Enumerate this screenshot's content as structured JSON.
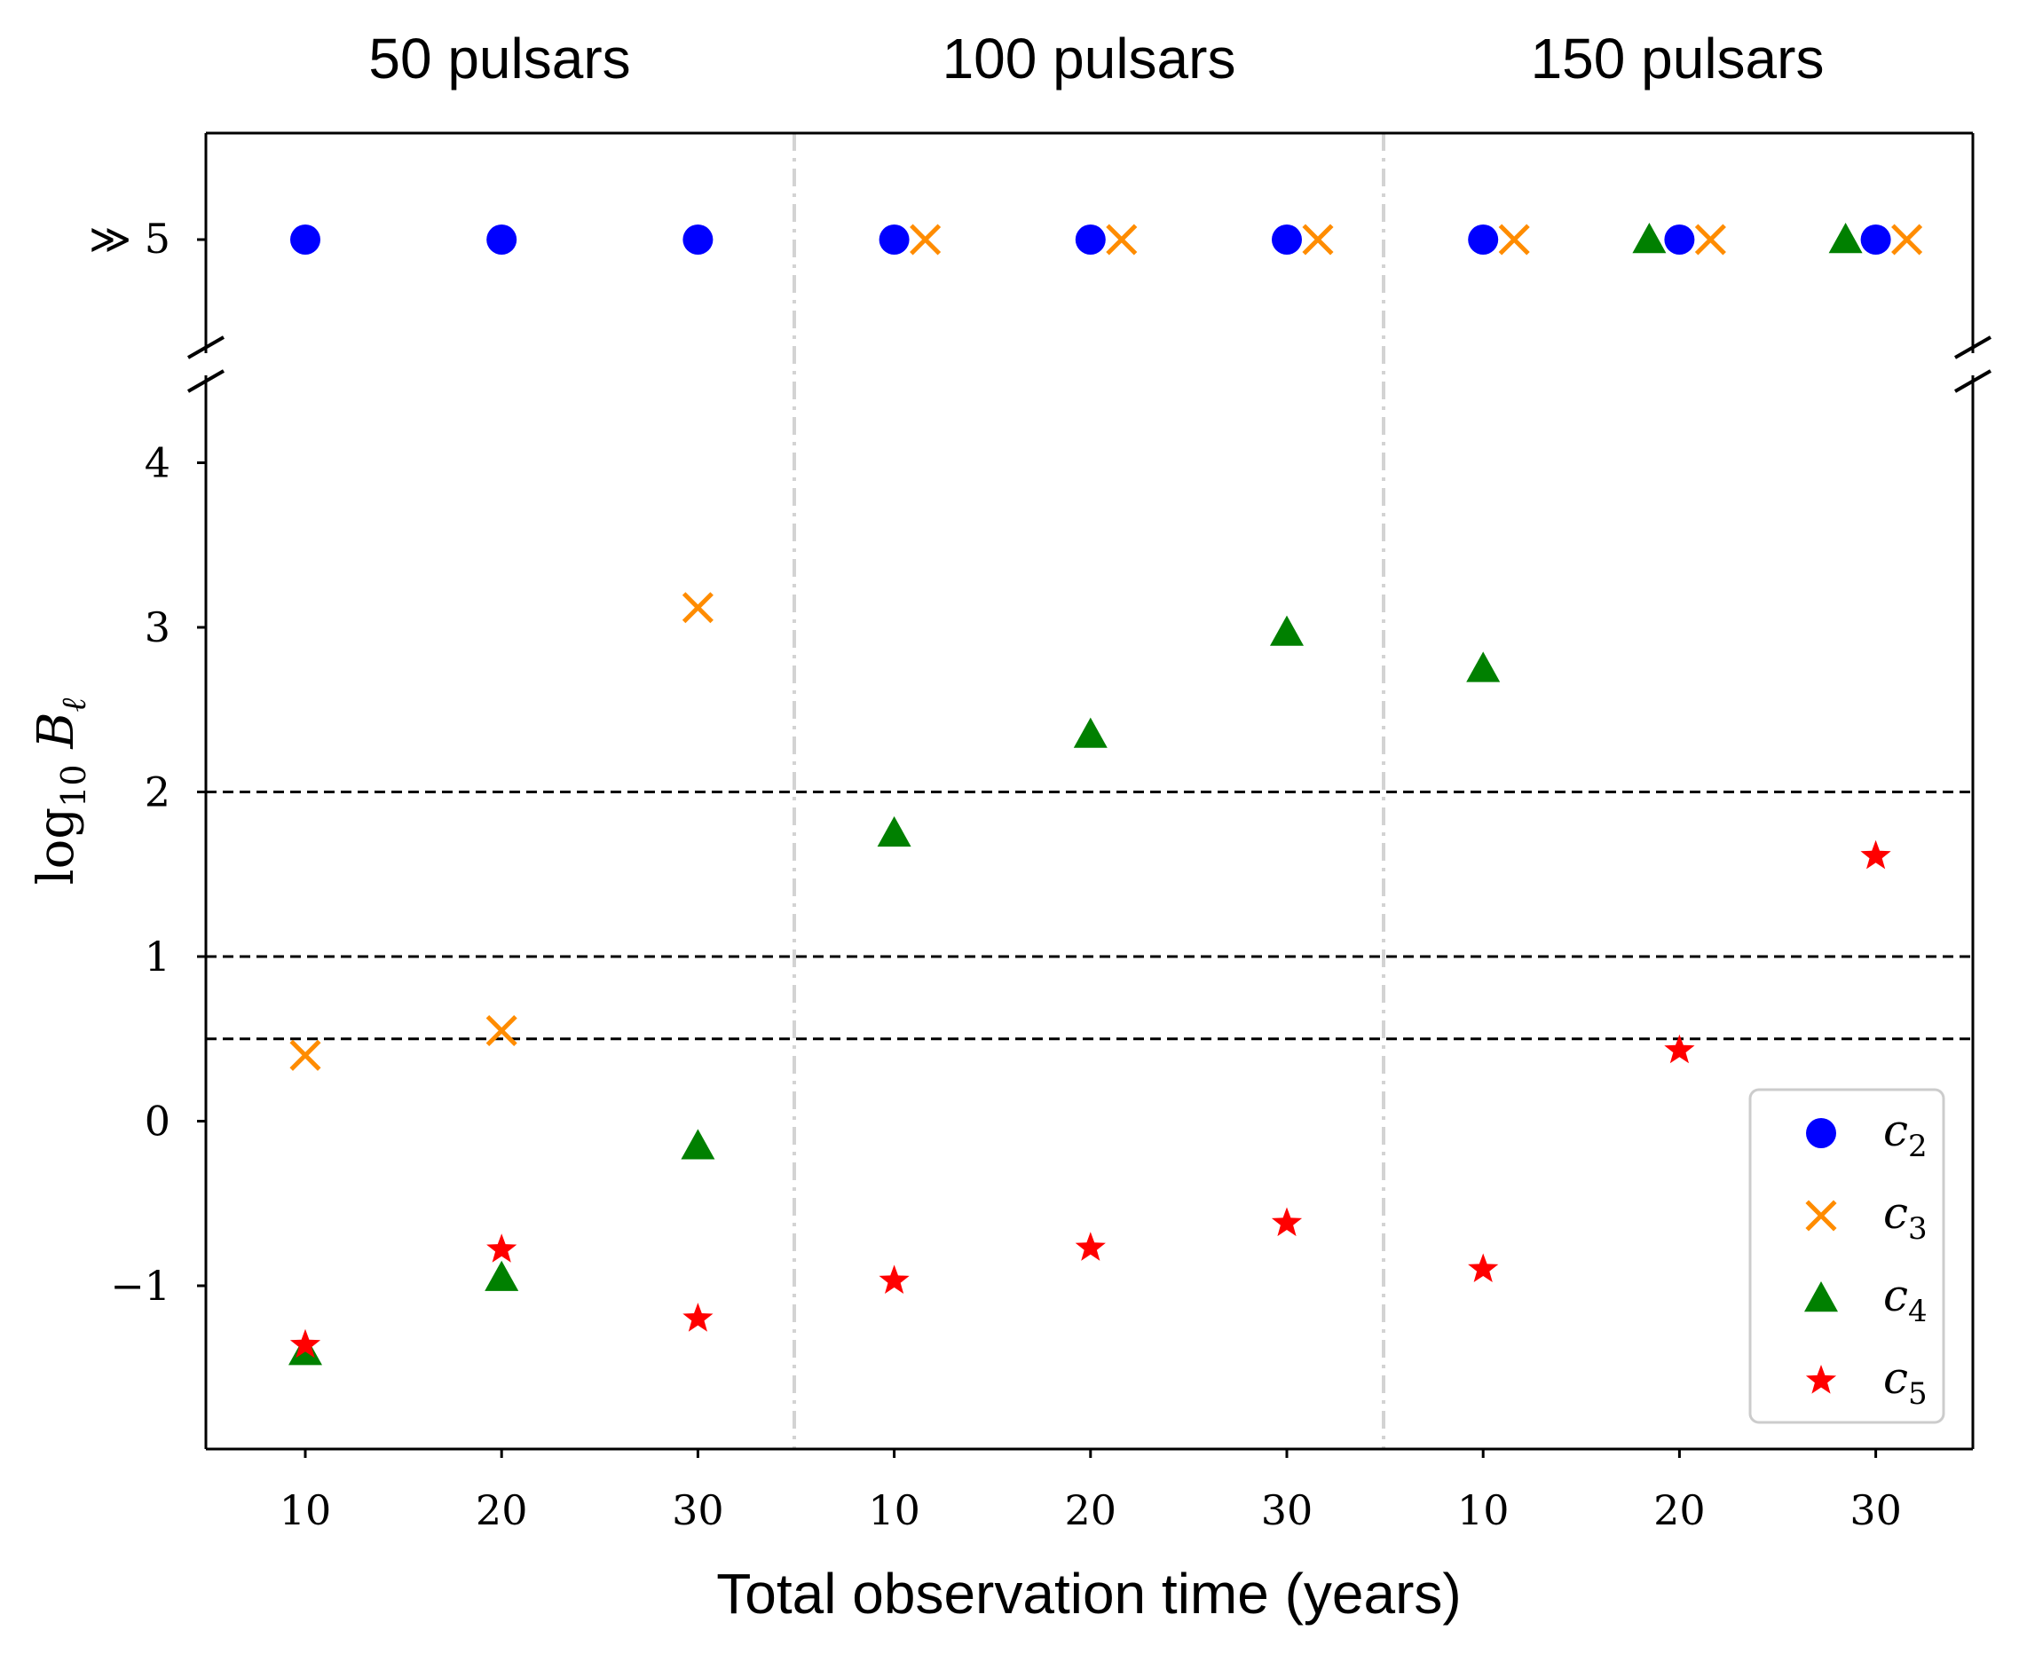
{
  "chart_data": {
    "type": "scatter",
    "xlabel": "Total observation time (years)",
    "ylabel_main": "log",
    "ylabel_sub": "10",
    "ylabel_sym": "B",
    "ylabel_symsub": "ℓ",
    "groups": [
      {
        "label": "50 pulsars",
        "years": [
          "10",
          "20",
          "30"
        ]
      },
      {
        "label": "100 pulsars",
        "years": [
          "10",
          "20",
          "30"
        ]
      },
      {
        "label": "150 pulsars",
        "years": [
          "10",
          "20",
          "30"
        ]
      }
    ],
    "top_tick_label": "≫ 5",
    "yticks": [
      "4",
      "3",
      "2",
      "1",
      "0",
      "−1"
    ],
    "ylim": [
      -2,
      4.4
    ],
    "thresholds": [
      2,
      1,
      0.5
    ],
    "series": [
      {
        "name": "c",
        "sub": "2",
        "marker": "circle",
        "color": "#0000ff",
        "points": [
          {
            "slot": 0,
            "value": ">=5"
          },
          {
            "slot": 1,
            "value": ">=5"
          },
          {
            "slot": 2,
            "value": ">=5"
          },
          {
            "slot": 3,
            "value": ">=5"
          },
          {
            "slot": 4,
            "value": ">=5"
          },
          {
            "slot": 5,
            "value": ">=5"
          },
          {
            "slot": 6,
            "value": ">=5"
          },
          {
            "slot": 7,
            "value": ">=5"
          },
          {
            "slot": 8,
            "value": ">=5"
          }
        ]
      },
      {
        "name": "c",
        "sub": "3",
        "marker": "x",
        "color": "#ff8c00",
        "points": [
          {
            "slot": 0,
            "value": 0.4
          },
          {
            "slot": 1,
            "value": 0.55
          },
          {
            "slot": 2,
            "value": 3.12
          },
          {
            "slot": 3,
            "value": ">=5"
          },
          {
            "slot": 4,
            "value": ">=5"
          },
          {
            "slot": 5,
            "value": ">=5"
          },
          {
            "slot": 6,
            "value": ">=5"
          },
          {
            "slot": 7,
            "value": ">=5"
          },
          {
            "slot": 8,
            "value": ">=5"
          }
        ]
      },
      {
        "name": "c",
        "sub": "4",
        "marker": "triangle",
        "color": "#008000",
        "points": [
          {
            "slot": 0,
            "value": -1.4
          },
          {
            "slot": 1,
            "value": -0.95
          },
          {
            "slot": 2,
            "value": -0.15
          },
          {
            "slot": 3,
            "value": 1.75
          },
          {
            "slot": 4,
            "value": 2.35
          },
          {
            "slot": 5,
            "value": 2.97
          },
          {
            "slot": 6,
            "value": 2.75
          },
          {
            "slot": 7,
            "value": ">=5"
          },
          {
            "slot": 8,
            "value": ">=5"
          }
        ]
      },
      {
        "name": "c",
        "sub": "5",
        "marker": "star",
        "color": "#ff0000",
        "points": [
          {
            "slot": 0,
            "value": -1.36
          },
          {
            "slot": 1,
            "value": -0.78
          },
          {
            "slot": 2,
            "value": -1.2
          },
          {
            "slot": 3,
            "value": -0.97
          },
          {
            "slot": 4,
            "value": -0.77
          },
          {
            "slot": 5,
            "value": -0.62
          },
          {
            "slot": 6,
            "value": -0.9
          },
          {
            "slot": 7,
            "value": 0.43
          },
          {
            "slot": 8,
            "value": 1.61
          }
        ]
      }
    ],
    "legend_location": "lower-right"
  }
}
